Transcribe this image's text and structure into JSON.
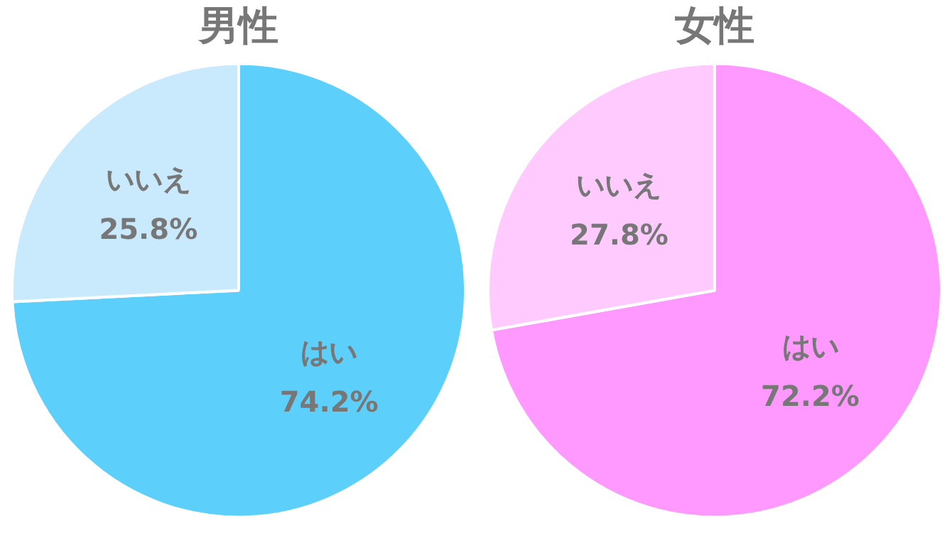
{
  "chart_data": [
    {
      "type": "pie",
      "title": "男性",
      "categories": [
        "はい",
        "いいえ"
      ],
      "values": [
        74.2,
        25.8
      ],
      "colors": [
        "#5ccffb",
        "#c9e9fd"
      ],
      "value_labels": [
        "74.2%",
        "25.8%"
      ]
    },
    {
      "type": "pie",
      "title": "女性",
      "categories": [
        "はい",
        "いいえ"
      ],
      "values": [
        72.2,
        27.8
      ],
      "colors": [
        "#ff99ff",
        "#ffcbff"
      ],
      "value_labels": [
        "72.2%",
        "27.8%"
      ]
    }
  ]
}
